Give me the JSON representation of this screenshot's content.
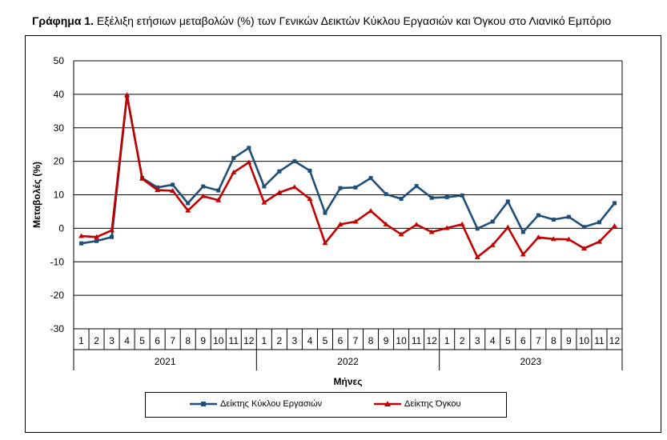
{
  "title": {
    "bold": "Γράφημα 1.",
    "rest": " Εξέλιξη ετήσιων μεταβολών (%) των Γενικών Δεικτών Κύκλου Εργασιών και Όγκου στο Λιανικό Εμπόριο"
  },
  "colors": {
    "turnover": "#1F4E79",
    "volume": "#C00000",
    "grid": "#000000"
  },
  "chart_data": {
    "type": "line",
    "ylabel": "Μεταβολές  (%)",
    "xlabel": "Μήνες",
    "ylim": [
      -30,
      50
    ],
    "yticks": [
      -30,
      -20,
      -10,
      0,
      10,
      20,
      30,
      40,
      50
    ],
    "grid": true,
    "legend_position": "bottom",
    "categories": [
      "1",
      "2",
      "3",
      "4",
      "5",
      "6",
      "7",
      "8",
      "9",
      "10",
      "11",
      "12",
      "1",
      "2",
      "3",
      "4",
      "5",
      "6",
      "7",
      "8",
      "9",
      "10",
      "11",
      "12",
      "1",
      "2",
      "3",
      "4",
      "5",
      "6",
      "7",
      "8",
      "9",
      "10",
      "11",
      "12"
    ],
    "years": [
      "2021",
      "2022",
      "2023"
    ],
    "series": [
      {
        "name": "Δείκτης Κύκλου Εργασιών",
        "color": "#1F4E79",
        "values": [
          -4.5,
          -3.8,
          -2.6,
          39.5,
          15.0,
          12.2,
          13.0,
          7.5,
          12.5,
          11.3,
          21.0,
          24.0,
          12.5,
          17.0,
          20.0,
          17.2,
          4.6,
          12.0,
          12.2,
          15.0,
          10.2,
          8.8,
          12.6,
          9.1,
          9.3,
          9.8,
          -0.1,
          2.0,
          8.0,
          -1.1,
          3.9,
          2.6,
          3.4,
          0.4,
          1.8,
          7.5
        ]
      },
      {
        "name": "Δείκτης Όγκου",
        "color": "#C00000",
        "values": [
          -2.3,
          -2.6,
          -0.6,
          39.8,
          14.8,
          11.4,
          11.2,
          5.3,
          9.6,
          8.4,
          16.7,
          19.7,
          7.7,
          10.7,
          12.3,
          8.8,
          -4.4,
          1.2,
          2.0,
          5.2,
          1.2,
          -1.8,
          1.1,
          -1.1,
          0.1,
          1.2,
          -8.6,
          -5.0,
          0.3,
          -7.8,
          -2.7,
          -3.2,
          -3.3,
          -6.0,
          -4.0,
          0.7
        ]
      }
    ]
  }
}
